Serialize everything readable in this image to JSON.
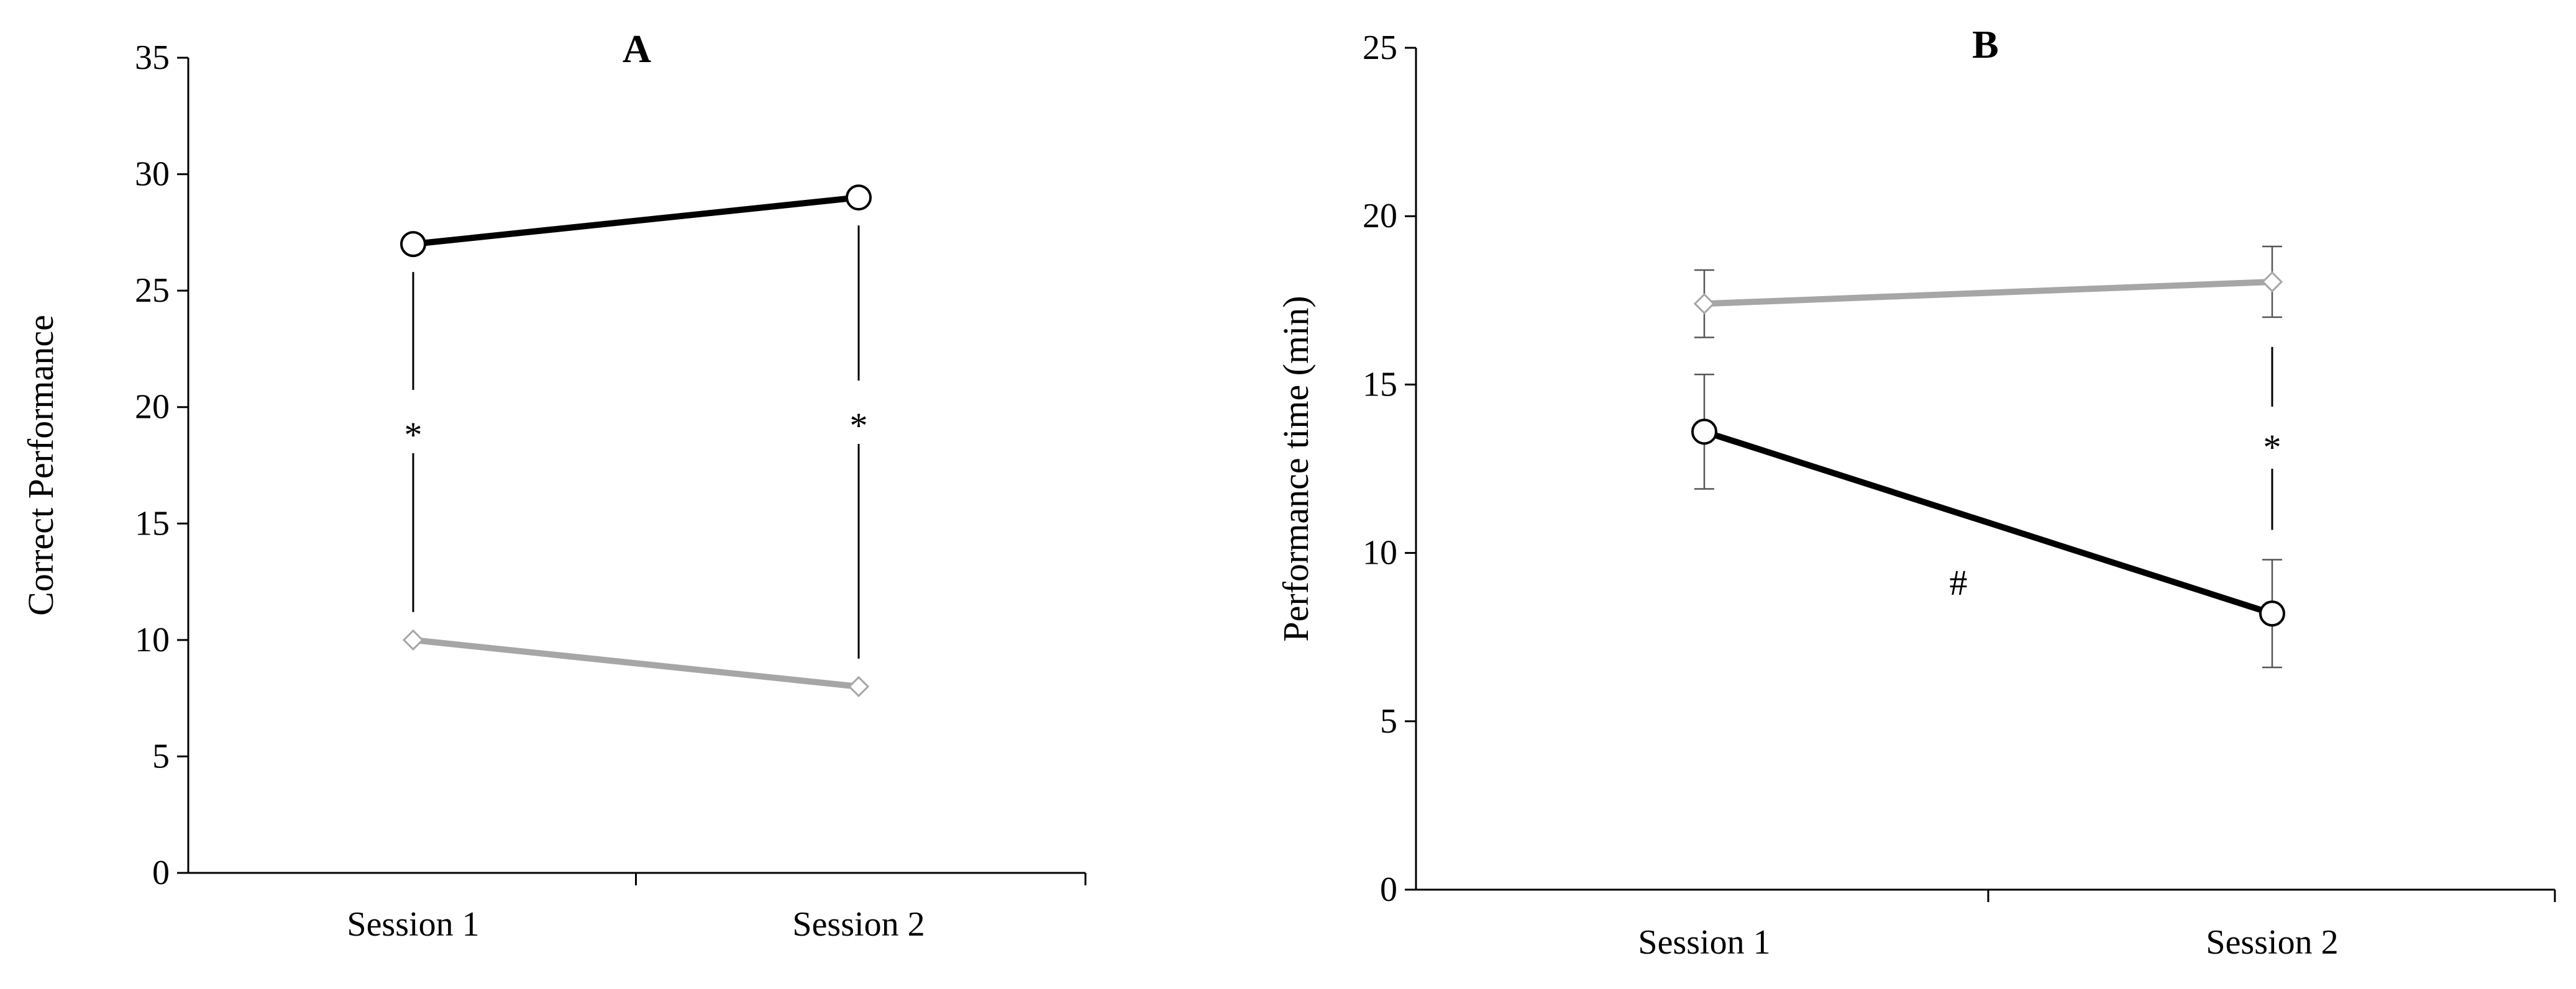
{
  "chart_data": [
    {
      "type": "line",
      "title": "A",
      "xlabel": "",
      "ylabel": "Correct Performance",
      "ylim": [
        0,
        35
      ],
      "yticks": [
        0,
        5,
        10,
        15,
        20,
        25,
        30,
        35
      ],
      "categories": [
        "Session 1",
        "Session 2"
      ],
      "series": [
        {
          "values": [
            27,
            29
          ],
          "color": "#000000",
          "marker": "circle"
        },
        {
          "values": [
            10,
            8
          ],
          "color": "#a6a6a6",
          "marker": "diamond"
        }
      ],
      "annotations": [
        "*",
        "*"
      ],
      "grid": false,
      "legend": "none"
    },
    {
      "type": "line",
      "title": "B",
      "xlabel": "",
      "ylabel": "Performance time (min)",
      "ylim": [
        0,
        25
      ],
      "yticks": [
        0,
        5,
        10,
        15,
        20,
        25
      ],
      "categories": [
        "Session 1",
        "Session 2"
      ],
      "series": [
        {
          "values": [
            17.4,
            18.05
          ],
          "error": [
            1.0,
            1.05
          ],
          "color": "#a6a6a6",
          "marker": "diamond"
        },
        {
          "values": [
            13.6,
            8.2
          ],
          "error": [
            1.7,
            1.6
          ],
          "color": "#000000",
          "marker": "circle"
        }
      ],
      "annotations": [
        "*",
        "#"
      ],
      "grid": false,
      "legend": "none"
    }
  ]
}
